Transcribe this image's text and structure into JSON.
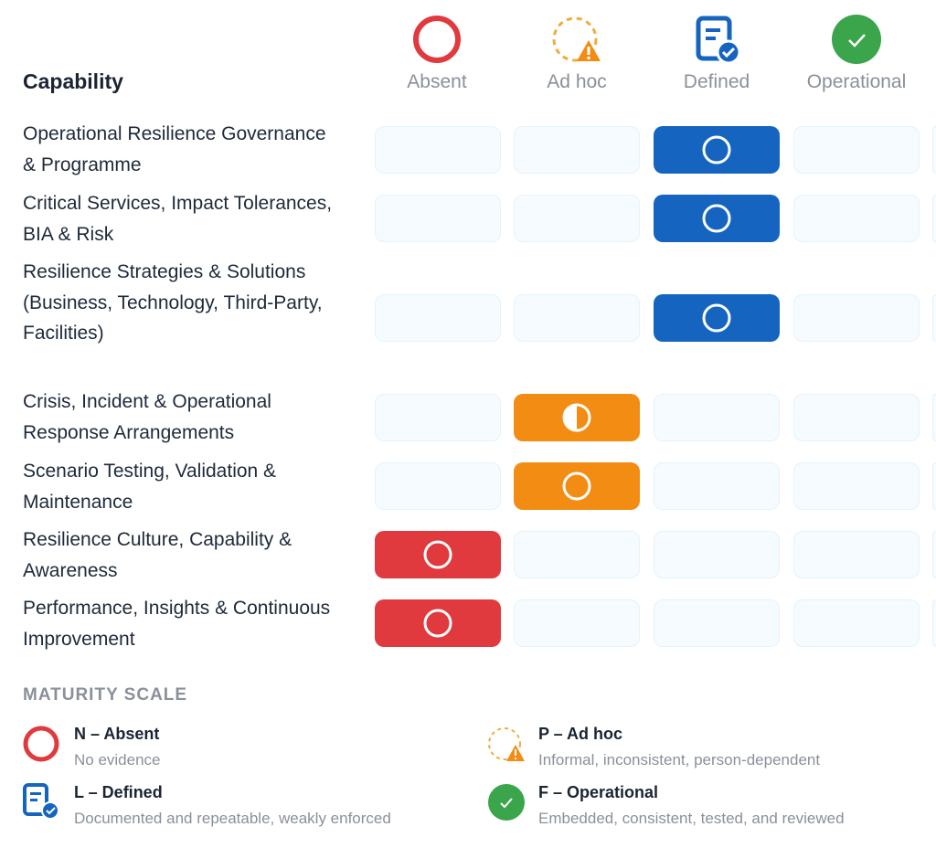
{
  "header": {
    "title": "Capability"
  },
  "levels": [
    {
      "label": "Absent",
      "color": "#e0393e"
    },
    {
      "label": "Ad hoc",
      "color": "#f38c13"
    },
    {
      "label": "Defined",
      "color": "#1565c0"
    },
    {
      "label": "Operational",
      "color": "#3aa54a"
    }
  ],
  "rows": [
    {
      "label": "Operational Resilience Governance & Programme",
      "level": 2,
      "icon": "circle"
    },
    {
      "label": "Critical Services, Impact Tolerances, BIA & Risk",
      "level": 2,
      "icon": "circle"
    },
    {
      "label": "Resilience Strategies & Solutions (Business, Technology, Third-Party, Facilities)",
      "level": 2,
      "icon": "circle"
    },
    {
      "label": "Crisis, Incident & Operational Response Arrangements",
      "level": 1,
      "icon": "half-circle"
    },
    {
      "label": "Scenario Testing, Validation & Maintenance",
      "level": 1,
      "icon": "circle"
    },
    {
      "label": "Resilience Culture, Capability & Awareness",
      "level": 0,
      "icon": "circle"
    },
    {
      "label": "Performance, Insights & Continuous Improvement",
      "level": 0,
      "icon": "circle"
    }
  ],
  "legend": {
    "title": "MATURITY SCALE",
    "items": [
      {
        "title": "N – Absent",
        "desc": "No evidence"
      },
      {
        "title": "P – Ad hoc",
        "desc": "Informal, inconsistent, person-dependent"
      },
      {
        "title": "L – Defined",
        "desc": "Documented and repeatable, weakly enforced"
      },
      {
        "title": "F – Operational",
        "desc": "Embedded, consistent, tested, and reviewed"
      }
    ]
  }
}
